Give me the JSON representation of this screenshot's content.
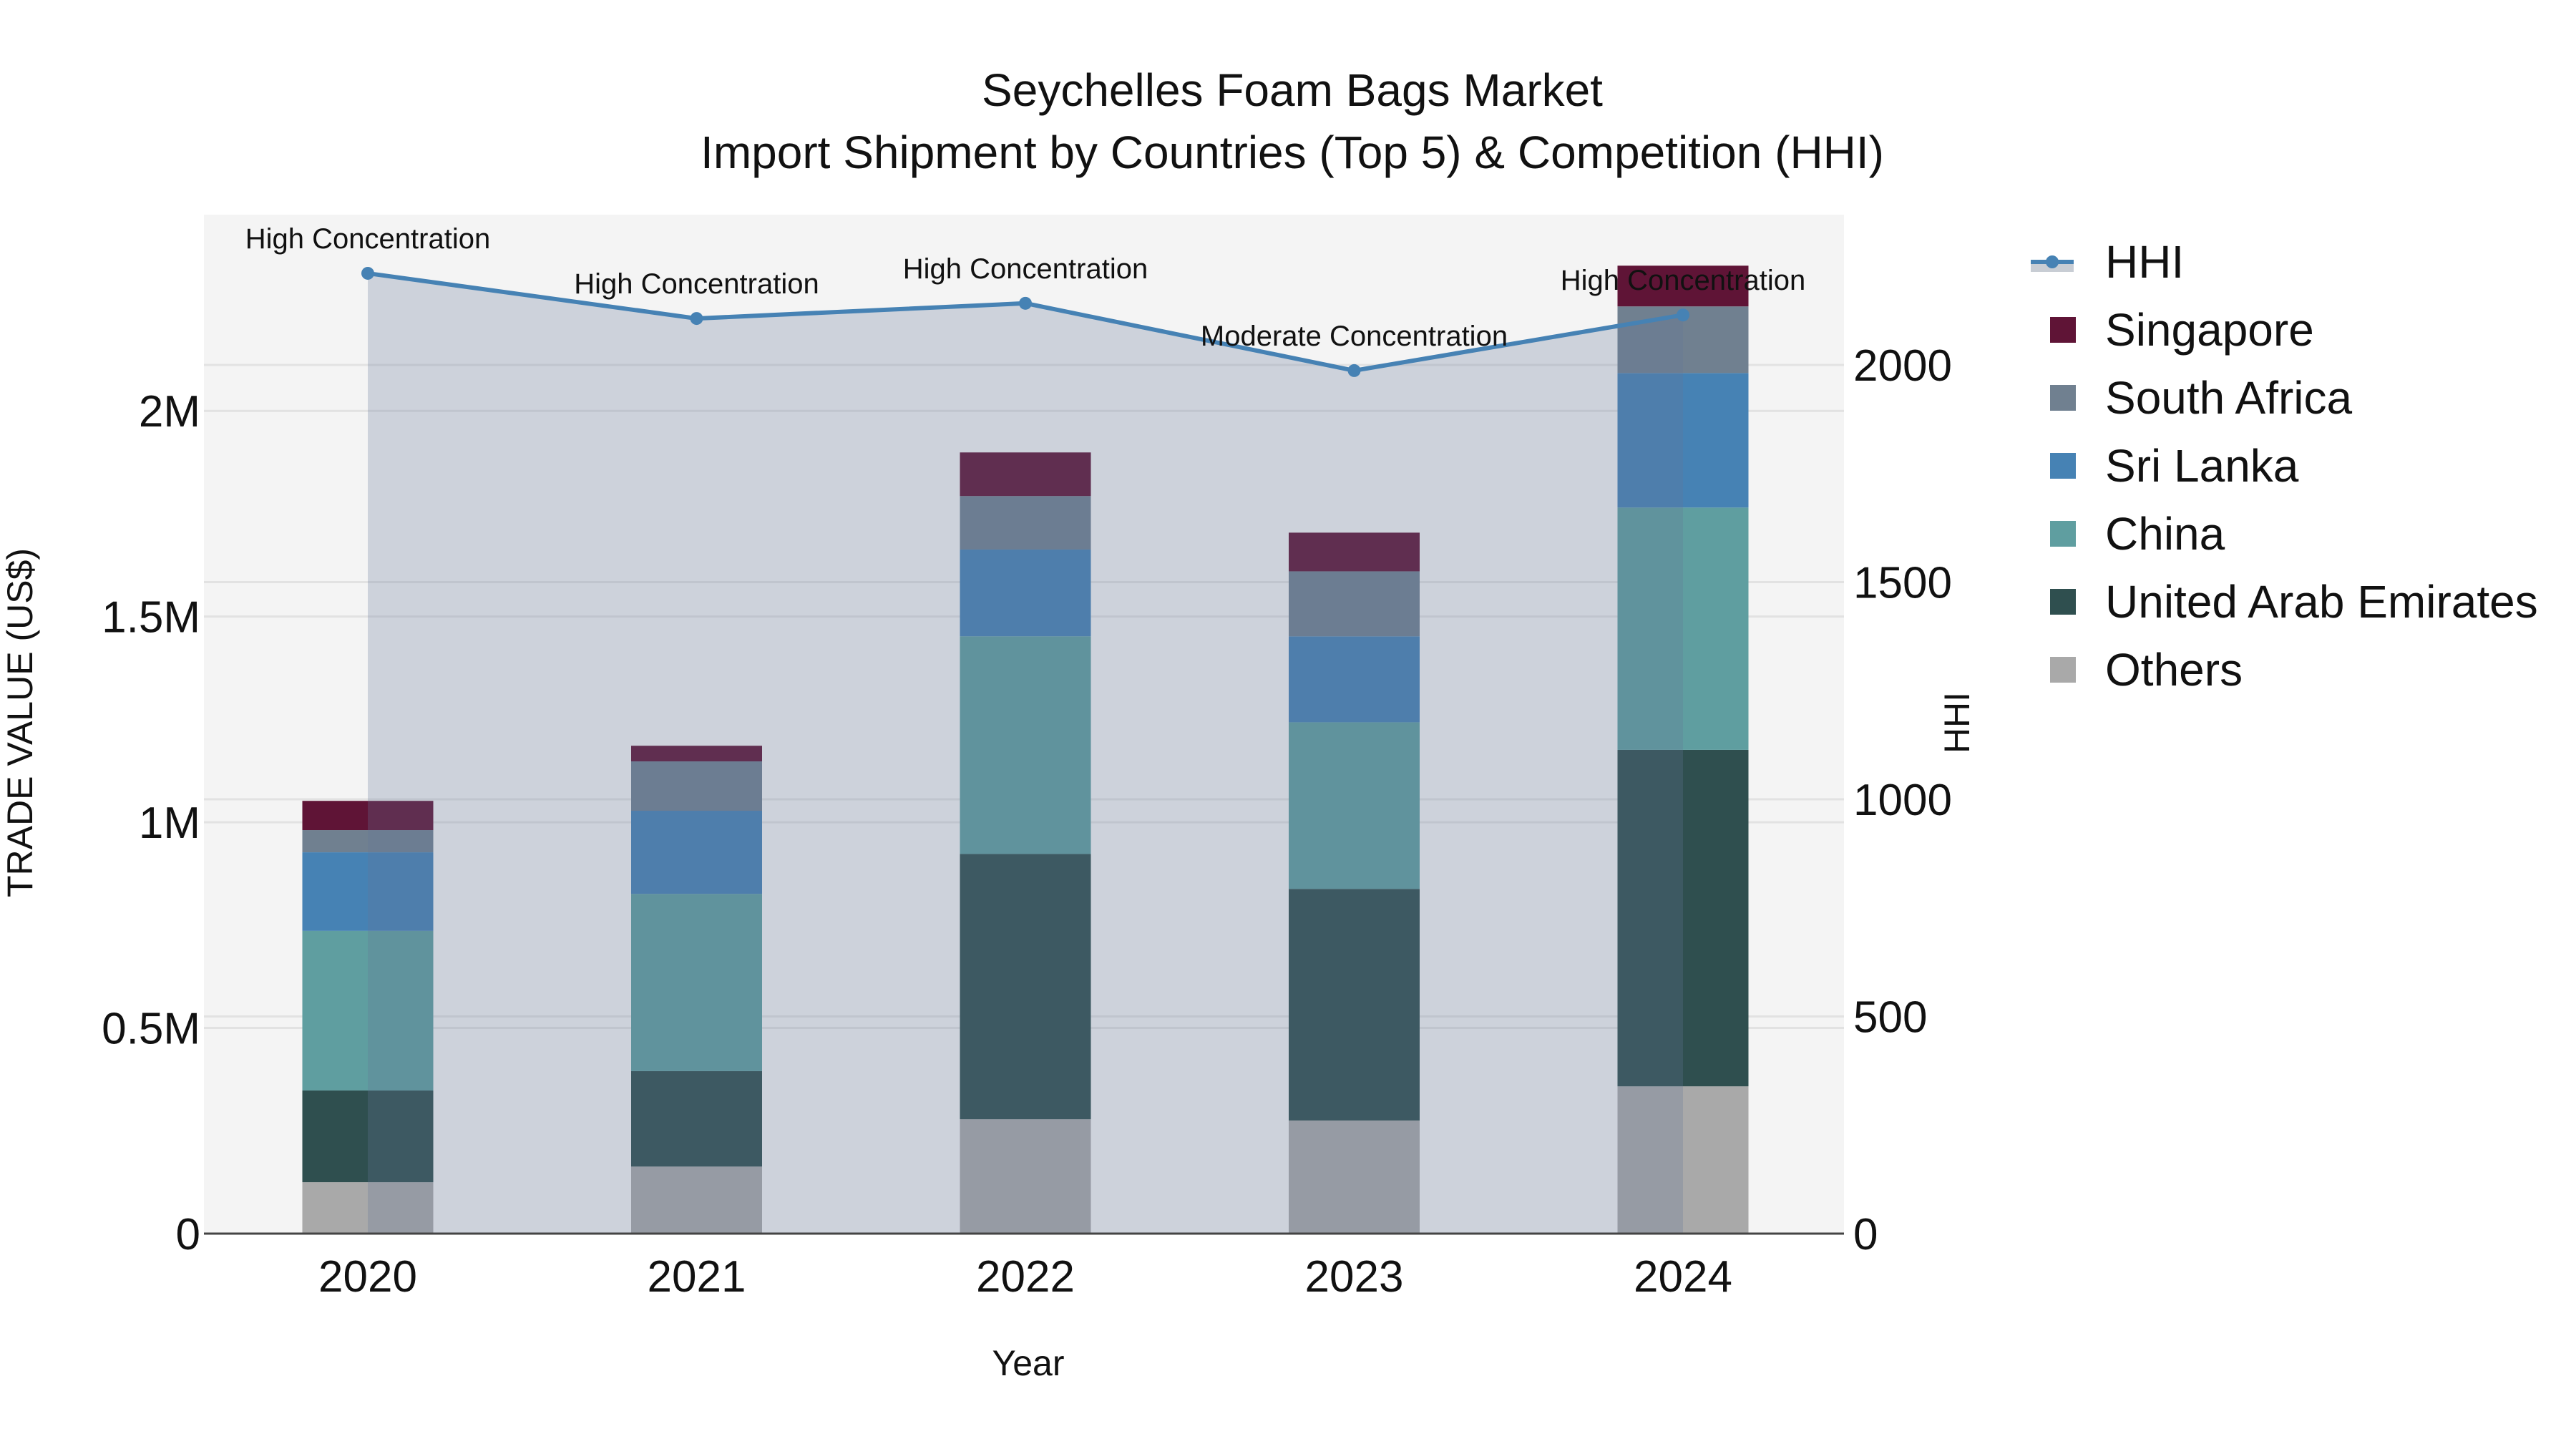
{
  "title": {
    "line1": "Seychelles Foam Bags Market",
    "line2": "Import Shipment by Countries (Top 5) & Competition (HHI)"
  },
  "axes": {
    "x_title": "Year",
    "y_left_title": "TRADE VALUE (US$)",
    "y_right_title": "HHI",
    "y_left_ticks": [
      "0",
      "0.5M",
      "1M",
      "1.5M",
      "2M"
    ],
    "y_right_ticks": [
      "0",
      "500",
      "1000",
      "1500",
      "2000"
    ],
    "x_ticks": [
      "2020",
      "2021",
      "2022",
      "2023",
      "2024"
    ]
  },
  "legend": [
    {
      "name": "HHI",
      "type": "line",
      "color": "#4682b4"
    },
    {
      "name": "Singapore",
      "type": "bar",
      "color": "#5f1436"
    },
    {
      "name": "South Africa",
      "type": "bar",
      "color": "#708090"
    },
    {
      "name": "Sri Lanka",
      "type": "bar",
      "color": "#4682b4"
    },
    {
      "name": "China",
      "type": "bar",
      "color": "#5f9ea0"
    },
    {
      "name": "United Arab Emirates",
      "type": "bar",
      "color": "#2f4f4f"
    },
    {
      "name": "Others",
      "type": "bar",
      "color": "#a9a9a9"
    }
  ],
  "annotations": [
    {
      "year": "2020",
      "text": "High Concentration"
    },
    {
      "year": "2021",
      "text": "High Concentration"
    },
    {
      "year": "2022",
      "text": "High Concentration"
    },
    {
      "year": "2023",
      "text": "Moderate Concentration"
    },
    {
      "year": "2024",
      "text": "High Concentration"
    }
  ],
  "chart_data": {
    "type": "bar",
    "stacked": true,
    "title": "Seychelles Foam Bags Market — Import Shipment by Countries (Top 5) & Competition (HHI)",
    "xlabel": "Year",
    "ylabel": "TRADE VALUE (US$)",
    "y2label": "HHI",
    "categories": [
      "2020",
      "2021",
      "2022",
      "2023",
      "2024"
    ],
    "ylim": [
      0,
      2477000
    ],
    "y2lim": [
      0,
      2346
    ],
    "grid": true,
    "legend_position": "right",
    "series": [
      {
        "name": "Others",
        "color": "#a9a9a9",
        "values": [
          125000,
          163000,
          278000,
          275000,
          358000
        ]
      },
      {
        "name": "United Arab Emirates",
        "color": "#2f4f4f",
        "values": [
          223000,
          232000,
          645000,
          563000,
          818000
        ]
      },
      {
        "name": "China",
        "color": "#5f9ea0",
        "values": [
          388000,
          431000,
          529000,
          405000,
          589000
        ]
      },
      {
        "name": "Sri Lanka",
        "color": "#4682b4",
        "values": [
          191000,
          202000,
          211000,
          209000,
          327000
        ]
      },
      {
        "name": "South Africa",
        "color": "#708090",
        "values": [
          54000,
          120000,
          130000,
          158000,
          162000
        ]
      },
      {
        "name": "Singapore",
        "color": "#5f1436",
        "values": [
          71000,
          38000,
          106000,
          94000,
          99000
        ]
      }
    ],
    "line_series": {
      "name": "HHI",
      "axis": "y2",
      "color": "#4682b4",
      "values": [
        2211,
        2107,
        2142,
        1987,
        2115
      ],
      "labels": [
        "High Concentration",
        "High Concentration",
        "High Concentration",
        "Moderate Concentration",
        "High Concentration"
      ]
    }
  }
}
